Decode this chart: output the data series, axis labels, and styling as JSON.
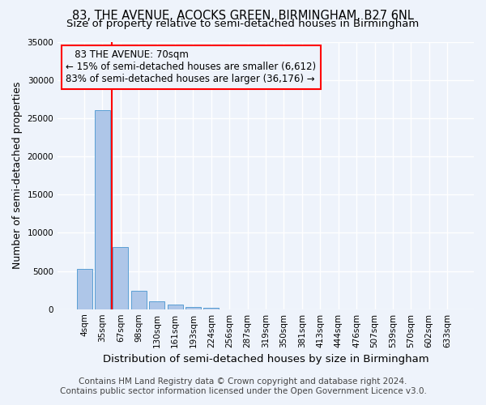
{
  "title": "83, THE AVENUE, ACOCKS GREEN, BIRMINGHAM, B27 6NL",
  "subtitle": "Size of property relative to semi-detached houses in Birmingham",
  "xlabel": "Distribution of semi-detached houses by size in Birmingham",
  "ylabel": "Number of semi-detached properties",
  "footnote1": "Contains HM Land Registry data © Crown copyright and database right 2024.",
  "footnote2": "Contains public sector information licensed under the Open Government Licence v3.0.",
  "annotation_title": "83 THE AVENUE: 70sqm",
  "annotation_line2": "← 15% of semi-detached houses are smaller (6,612)",
  "annotation_line3": "83% of semi-detached houses are larger (36,176) →",
  "bar_color": "#aec6e8",
  "bar_edge_color": "#5a9fd4",
  "vline_color": "red",
  "annotation_box_color": "red",
  "categories": [
    "4sqm",
    "35sqm",
    "67sqm",
    "98sqm",
    "130sqm",
    "161sqm",
    "193sqm",
    "224sqm",
    "256sqm",
    "287sqm",
    "319sqm",
    "350sqm",
    "381sqm",
    "413sqm",
    "444sqm",
    "476sqm",
    "507sqm",
    "539sqm",
    "570sqm",
    "602sqm",
    "633sqm"
  ],
  "values": [
    5300,
    26000,
    8100,
    2400,
    1000,
    600,
    300,
    200,
    0,
    0,
    0,
    0,
    0,
    0,
    0,
    0,
    0,
    0,
    0,
    0,
    0
  ],
  "vline_x": 1.5,
  "ylim": [
    0,
    35000
  ],
  "yticks": [
    0,
    5000,
    10000,
    15000,
    20000,
    25000,
    30000,
    35000
  ],
  "background_color": "#eef3fb",
  "grid_color": "#ffffff",
  "title_fontsize": 10.5,
  "subtitle_fontsize": 9.5,
  "axis_label_fontsize": 9,
  "tick_fontsize": 7.5,
  "annotation_fontsize": 8.5,
  "footnote_fontsize": 7.5
}
